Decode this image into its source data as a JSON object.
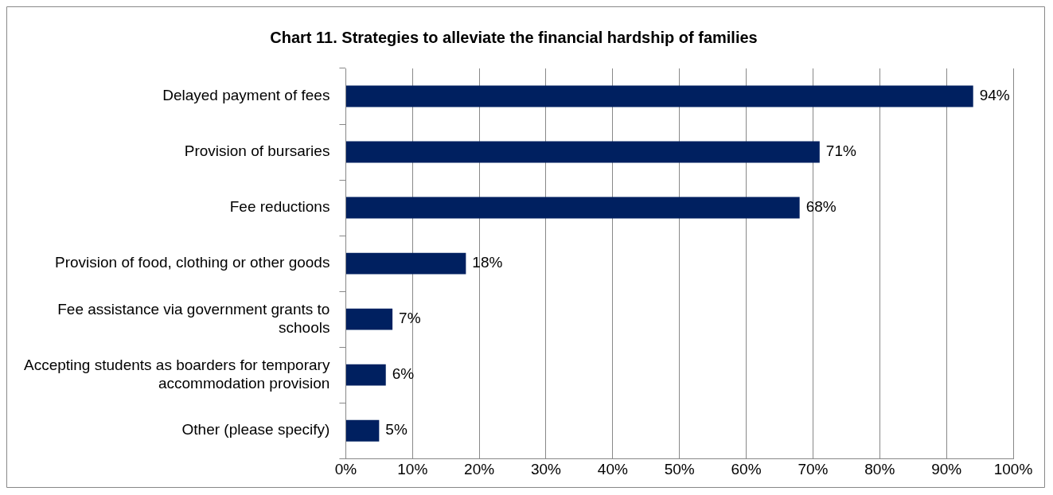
{
  "chart_data": {
    "type": "bar",
    "orientation": "horizontal",
    "title": "Chart 11. Strategies to alleviate the financial hardship of families",
    "categories": [
      "Delayed payment of fees",
      "Provision of bursaries",
      "Fee reductions",
      "Provision of food, clothing or other goods",
      "Fee assistance via government grants to schools",
      "Accepting students as boarders for temporary accommodation provision",
      "Other (please specify)"
    ],
    "values": [
      94,
      71,
      68,
      18,
      7,
      6,
      5
    ],
    "value_labels": [
      "94%",
      "71%",
      "68%",
      "18%",
      "7%",
      "6%",
      "5%"
    ],
    "color": "#002060",
    "xlim": [
      0,
      100
    ],
    "xticks": [
      {
        "value": 0,
        "label": "0%"
      },
      {
        "value": 10,
        "label": "10%"
      },
      {
        "value": 20,
        "label": "20%"
      },
      {
        "value": 30,
        "label": "30%"
      },
      {
        "value": 40,
        "label": "40%"
      },
      {
        "value": 50,
        "label": "50%"
      },
      {
        "value": 60,
        "label": "60%"
      },
      {
        "value": 70,
        "label": "70%"
      },
      {
        "value": 80,
        "label": "80%"
      },
      {
        "value": 90,
        "label": "90%"
      },
      {
        "value": 100,
        "label": "100%"
      }
    ],
    "grid": "x",
    "legend": false
  }
}
